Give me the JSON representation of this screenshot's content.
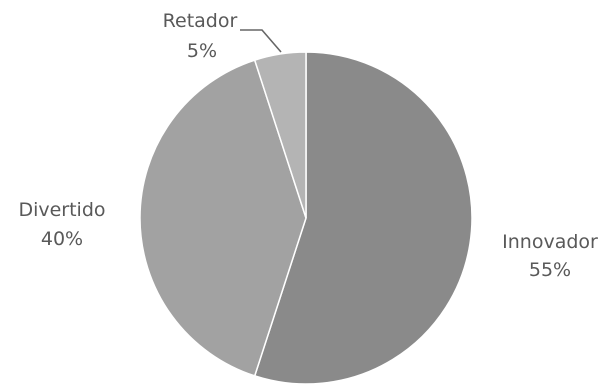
{
  "chart_data": {
    "type": "pie",
    "title": "",
    "start_angle_deg": 0,
    "direction": "clockwise",
    "slices": [
      {
        "label": "Innovador",
        "percent_label": "55%",
        "value": 55,
        "color": "#8a8a8a"
      },
      {
        "label": "Divertido",
        "percent_label": "40%",
        "value": 40,
        "color": "#a2a2a2"
      },
      {
        "label": "Retador",
        "percent_label": "5%",
        "value": 5,
        "color": "#b4b4b4"
      }
    ],
    "legend": "none",
    "data_labels": "outside, category name and percentage"
  }
}
